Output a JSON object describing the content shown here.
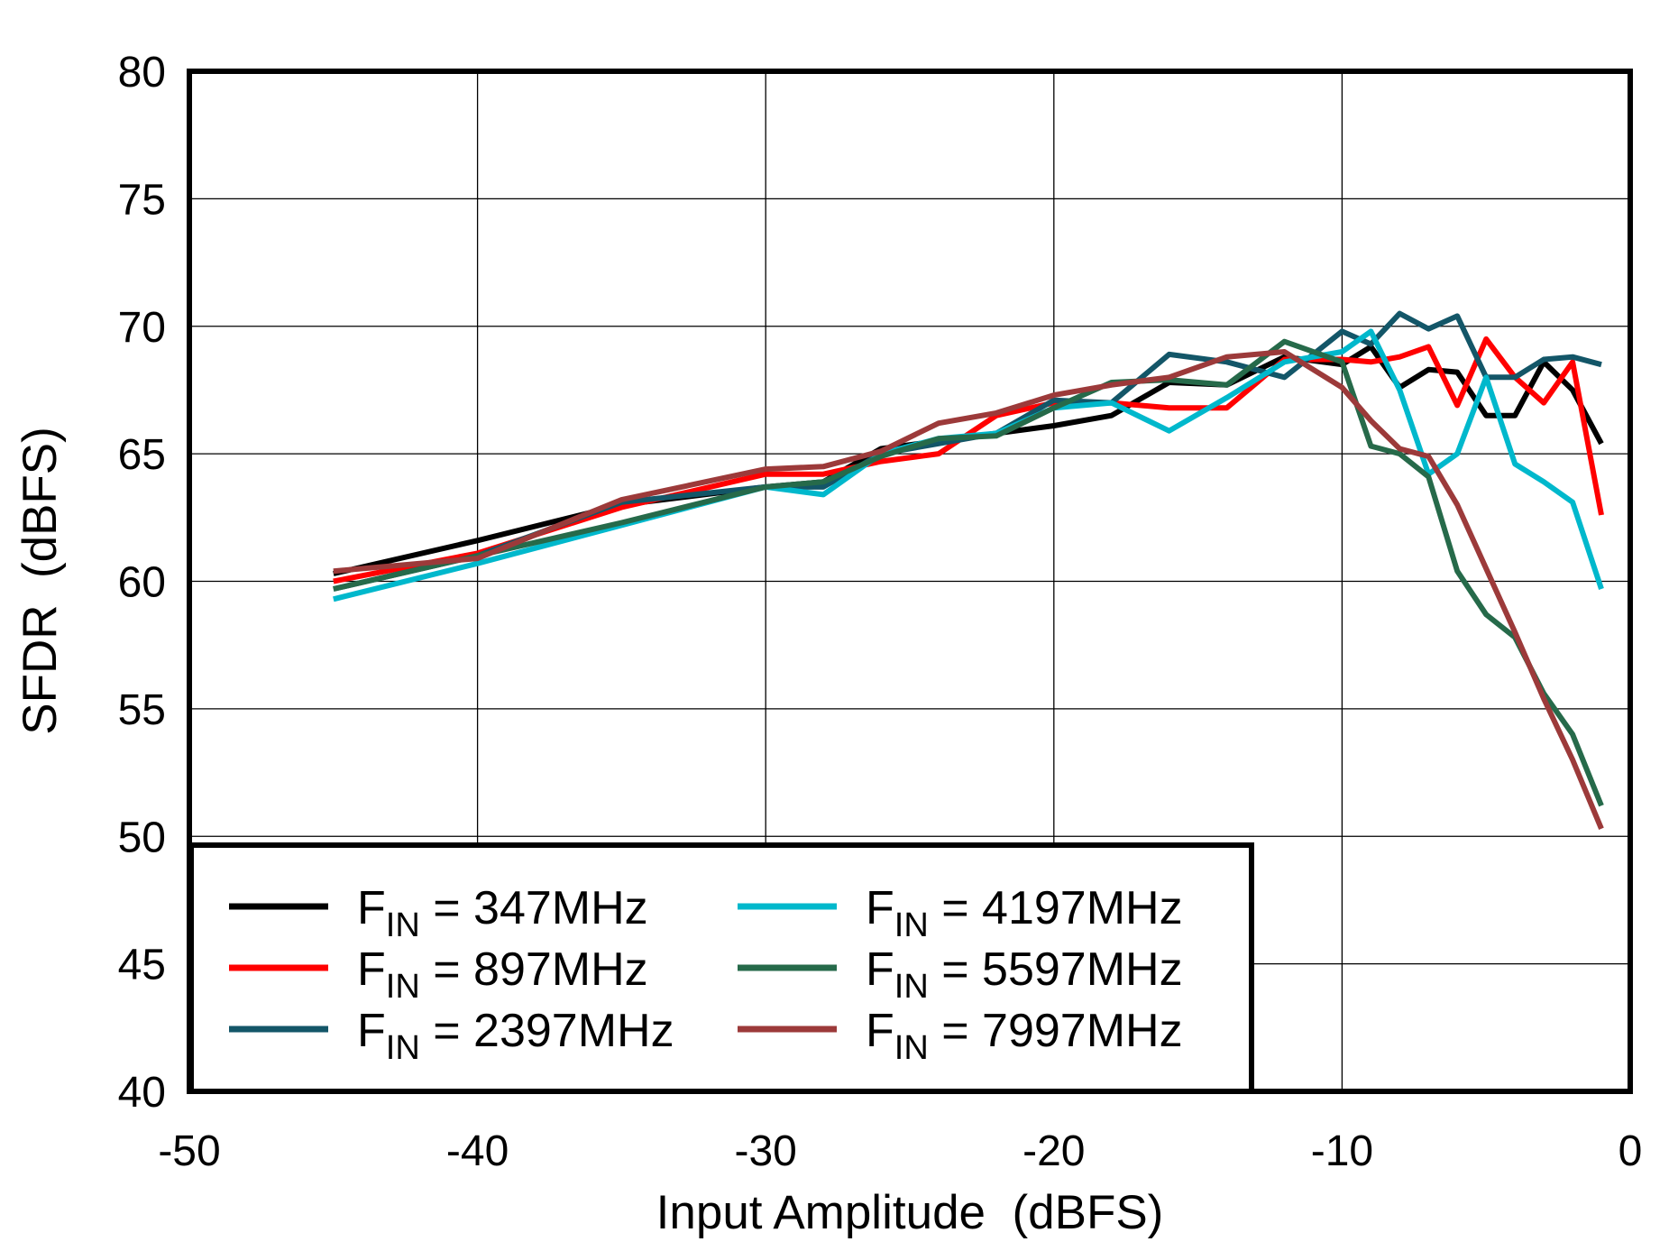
{
  "chart_data": {
    "type": "line",
    "title": "",
    "xlabel": "Input Amplitude  (dBFS)",
    "ylabel": "SFDR  (dBFS)",
    "xlim": [
      -50,
      0
    ],
    "ylim": [
      40,
      80
    ],
    "xticks": [
      -50,
      -40,
      -30,
      -20,
      -10,
      0
    ],
    "yticks": [
      40,
      45,
      50,
      55,
      60,
      65,
      70,
      75,
      80
    ],
    "grid": true,
    "legend_placement": "bottom-left",
    "x": [
      -45,
      -40,
      -35,
      -30,
      -28,
      -26,
      -24,
      -22,
      -20,
      -18,
      -16,
      -14,
      -12,
      -10,
      -9,
      -8,
      -7,
      -6,
      -5,
      -4,
      -3,
      -2,
      -1
    ],
    "series": [
      {
        "name": "FIN = 347MHz",
        "label_prefix": "F",
        "label_sub": "IN",
        "label_rest": " = 347MHz",
        "color": "#000000",
        "values": [
          60.3,
          61.6,
          63.0,
          63.7,
          63.9,
          65.2,
          65.5,
          65.8,
          66.1,
          66.5,
          67.8,
          67.7,
          68.8,
          68.5,
          69.2,
          67.6,
          68.3,
          68.2,
          66.5,
          66.5,
          68.6,
          67.5,
          65.4
        ]
      },
      {
        "name": "FIN = 897MHz",
        "label_prefix": "F",
        "label_sub": "IN",
        "label_rest": " = 897MHz",
        "color": "#ff0000",
        "values": [
          60.0,
          61.1,
          62.9,
          64.2,
          64.2,
          64.7,
          65.0,
          66.5,
          67.0,
          67.0,
          66.8,
          66.8,
          68.7,
          68.7,
          68.6,
          68.8,
          69.2,
          66.9,
          69.5,
          68.0,
          67.0,
          68.6,
          62.6
        ]
      },
      {
        "name": "FIN = 2397MHz",
        "label_prefix": "F",
        "label_sub": "IN",
        "label_rest": " = 2397MHz",
        "color": "#135668",
        "values": [
          59.7,
          61.0,
          63.1,
          63.7,
          63.7,
          65.0,
          65.4,
          65.8,
          67.1,
          67.0,
          68.9,
          68.6,
          68.0,
          69.8,
          69.3,
          70.5,
          69.9,
          70.4,
          68.0,
          68.0,
          68.7,
          68.8,
          68.5
        ]
      },
      {
        "name": "FIN = 4197MHz",
        "label_prefix": "F",
        "label_sub": "IN",
        "label_rest": " = 4197MHz",
        "color": "#00b8cc",
        "values": [
          59.3,
          60.7,
          62.2,
          63.7,
          63.4,
          65.0,
          65.6,
          65.8,
          66.8,
          67.0,
          65.9,
          67.2,
          68.6,
          69.0,
          69.8,
          67.5,
          64.2,
          65.0,
          68.0,
          64.6,
          63.9,
          63.1,
          59.7
        ]
      },
      {
        "name": "FIN = 5597MHz",
        "label_prefix": "F",
        "label_sub": "IN",
        "label_rest": " = 5597MHz",
        "color": "#266a4a",
        "values": [
          59.7,
          61.0,
          62.3,
          63.7,
          63.9,
          64.9,
          65.6,
          65.7,
          66.8,
          67.8,
          67.9,
          67.7,
          69.4,
          68.6,
          65.3,
          65.0,
          64.1,
          60.4,
          58.7,
          57.8,
          55.6,
          54.0,
          51.2
        ]
      },
      {
        "name": "FIN = 7997MHz",
        "label_prefix": "F",
        "label_sub": "IN",
        "label_rest": " = 7997MHz",
        "color": "#9c3a3a",
        "values": [
          60.4,
          60.9,
          63.2,
          64.4,
          64.5,
          65.1,
          66.2,
          66.6,
          67.3,
          67.7,
          68.0,
          68.8,
          69.0,
          67.6,
          66.3,
          65.2,
          64.9,
          63.0,
          60.5,
          58.0,
          55.4,
          53.0,
          50.3
        ]
      }
    ]
  }
}
